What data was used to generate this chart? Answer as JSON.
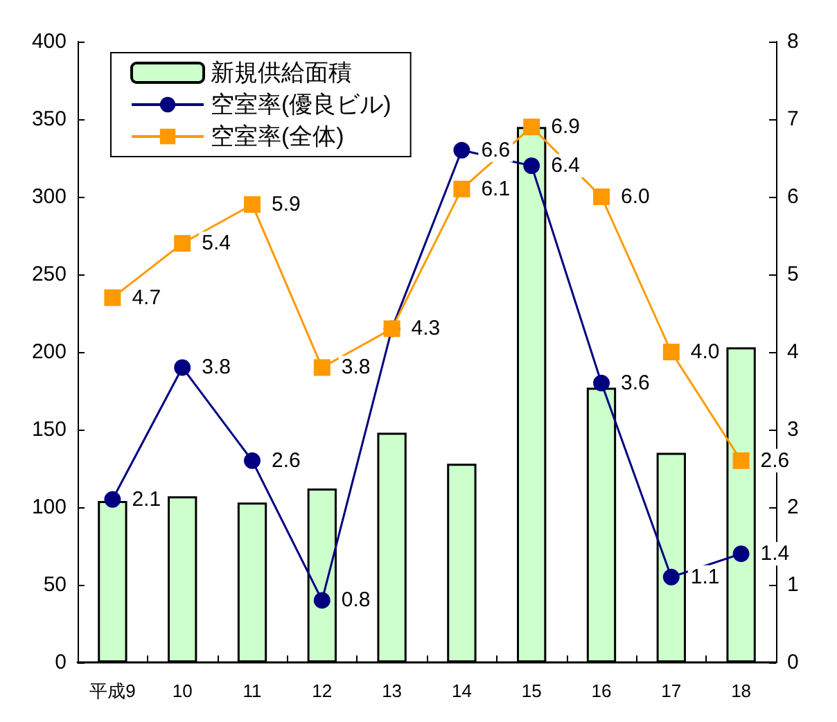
{
  "chart_data": {
    "type": "bar",
    "categories": [
      "平成9",
      "10",
      "11",
      "12",
      "13",
      "14",
      "15",
      "16",
      "17",
      "18"
    ],
    "series": [
      {
        "name": "新規供給面積",
        "color": "#ccffcc",
        "values": [
          104,
          107,
          103,
          112,
          148,
          128,
          345,
          177,
          135,
          203
        ]
      },
      {
        "name": "空室率(優良ビル)",
        "type": "line",
        "axis": "y2",
        "color": "#000080",
        "marker": "circle",
        "values": [
          2.1,
          3.8,
          2.6,
          0.8,
          4.3,
          6.6,
          6.4,
          3.6,
          1.1,
          1.4
        ],
        "value_labels": [
          "2.1",
          "3.8",
          "2.6",
          "0.8",
          "4.3",
          "6.6",
          "6.4",
          "3.6",
          "1.1",
          "1.4"
        ]
      },
      {
        "name": "空室率(全体)",
        "type": "line",
        "axis": "y2",
        "color": "#ff9900",
        "marker": "square",
        "values": [
          4.7,
          5.4,
          5.9,
          3.8,
          4.3,
          6.1,
          6.9,
          6.0,
          4.0,
          2.6
        ],
        "value_labels": [
          "4.7",
          "5.4",
          "5.9",
          "3.8",
          null,
          "6.1",
          "6.9",
          "6.0",
          "4.0",
          "2.6"
        ]
      }
    ],
    "ylim": [
      0,
      400
    ],
    "yticks": [
      0,
      50,
      100,
      150,
      200,
      250,
      300,
      350,
      400
    ],
    "y2lim": [
      0,
      8
    ],
    "y2ticks": [
      0,
      1,
      2,
      3,
      4,
      5,
      6,
      7,
      8
    ],
    "grid": false,
    "legend": "top left",
    "line_style": "solid"
  }
}
